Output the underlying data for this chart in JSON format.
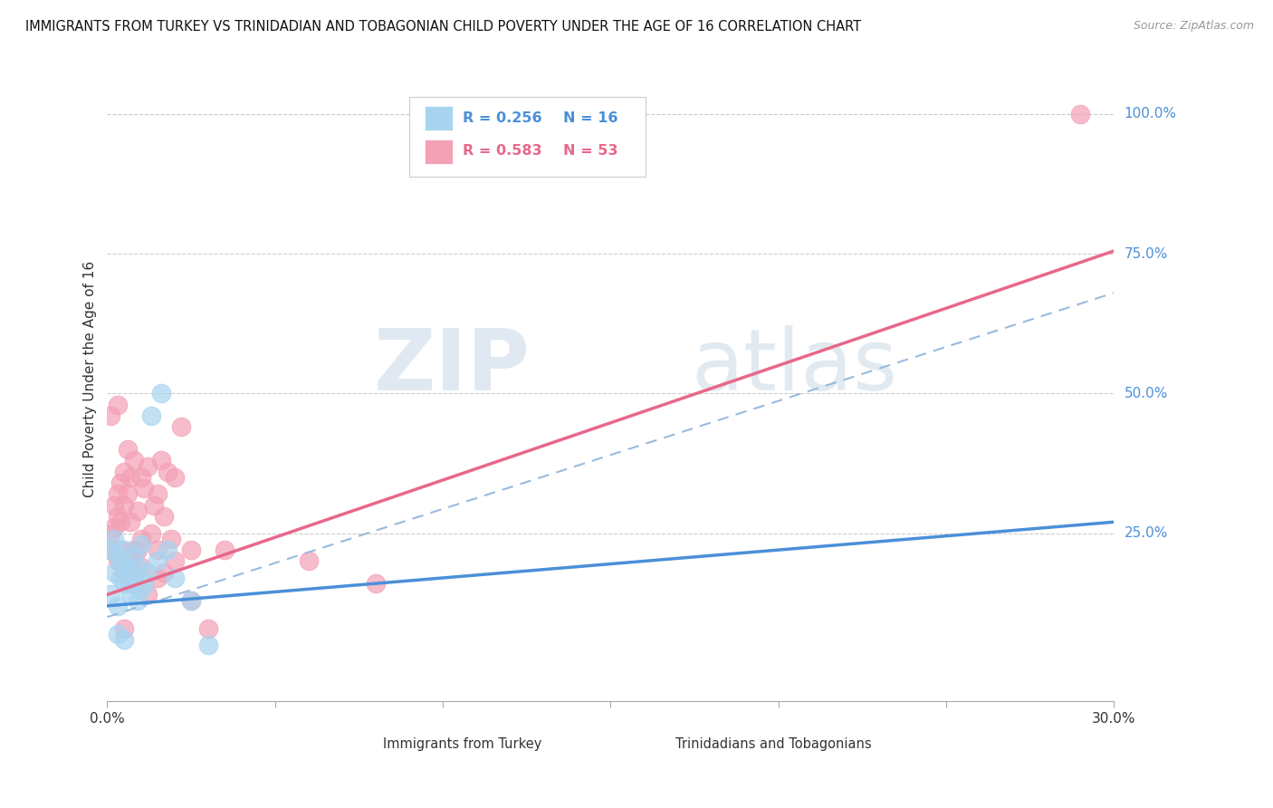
{
  "title": "IMMIGRANTS FROM TURKEY VS TRINIDADIAN AND TOBAGONIAN CHILD POVERTY UNDER THE AGE OF 16 CORRELATION CHART",
  "source": "Source: ZipAtlas.com",
  "ylabel": "Child Poverty Under the Age of 16",
  "ytick_labels": [
    "100.0%",
    "75.0%",
    "50.0%",
    "25.0%"
  ],
  "ytick_values": [
    1.0,
    0.75,
    0.5,
    0.25
  ],
  "legend_label1": "Immigrants from Turkey",
  "legend_label2": "Trinidadians and Tobagonians",
  "legend_r1": "R = 0.256",
  "legend_n1": "N = 16",
  "legend_r2": "R = 0.583",
  "legend_n2": "N = 53",
  "color_turkey": "#a8d4f0",
  "color_trint": "#f4a0b5",
  "color_line_turkey": "#4a90d9",
  "color_line_trint": "#e8688a",
  "color_dashed": "#99bbdd",
  "background_color": "#ffffff",
  "watermark_zip": "ZIP",
  "watermark_atlas": "atlas",
  "xmin": 0.0,
  "xmax": 0.3,
  "ymin": -0.05,
  "ymax": 1.1,
  "turkey_line_y0": 0.12,
  "turkey_line_y1": 0.27,
  "trint_line_y0": 0.14,
  "trint_line_y1": 0.755,
  "dashed_line_y0": 0.1,
  "dashed_line_y1": 0.68,
  "turkey_points_x": [
    0.001,
    0.002,
    0.003,
    0.004,
    0.005,
    0.006,
    0.007,
    0.008,
    0.009,
    0.01,
    0.012,
    0.015,
    0.018,
    0.02,
    0.025,
    0.03
  ],
  "turkey_points_y": [
    0.14,
    0.18,
    0.12,
    0.2,
    0.16,
    0.19,
    0.14,
    0.17,
    0.13,
    0.15,
    0.18,
    0.2,
    0.22,
    0.17,
    0.13,
    0.05
  ],
  "turkey_extra_x": [
    0.001,
    0.002,
    0.003,
    0.004,
    0.005,
    0.006,
    0.007,
    0.008,
    0.009,
    0.01,
    0.011,
    0.013,
    0.016,
    0.003,
    0.005
  ],
  "turkey_extra_y": [
    0.22,
    0.24,
    0.21,
    0.17,
    0.22,
    0.18,
    0.16,
    0.21,
    0.19,
    0.23,
    0.16,
    0.46,
    0.5,
    0.07,
    0.06
  ],
  "trint_points_x": [
    0.001,
    0.002,
    0.003,
    0.003,
    0.004,
    0.004,
    0.005,
    0.005,
    0.006,
    0.006,
    0.007,
    0.007,
    0.008,
    0.008,
    0.009,
    0.01,
    0.01,
    0.011,
    0.012,
    0.013,
    0.014,
    0.015,
    0.015,
    0.016,
    0.017,
    0.018,
    0.019,
    0.02,
    0.022,
    0.025,
    0.001,
    0.002,
    0.003,
    0.004,
    0.005,
    0.006,
    0.007,
    0.008,
    0.009,
    0.01,
    0.012,
    0.015,
    0.017,
    0.02,
    0.025,
    0.03,
    0.035,
    0.06,
    0.08,
    0.001,
    0.003,
    0.29,
    0.005
  ],
  "trint_points_y": [
    0.22,
    0.26,
    0.28,
    0.32,
    0.27,
    0.34,
    0.3,
    0.36,
    0.32,
    0.4,
    0.35,
    0.27,
    0.38,
    0.22,
    0.29,
    0.35,
    0.24,
    0.33,
    0.37,
    0.25,
    0.3,
    0.32,
    0.22,
    0.38,
    0.28,
    0.36,
    0.24,
    0.35,
    0.44,
    0.22,
    0.25,
    0.3,
    0.2,
    0.22,
    0.18,
    0.21,
    0.2,
    0.16,
    0.22,
    0.19,
    0.14,
    0.17,
    0.18,
    0.2,
    0.13,
    0.08,
    0.22,
    0.2,
    0.16,
    0.46,
    0.48,
    1.0,
    0.08
  ]
}
